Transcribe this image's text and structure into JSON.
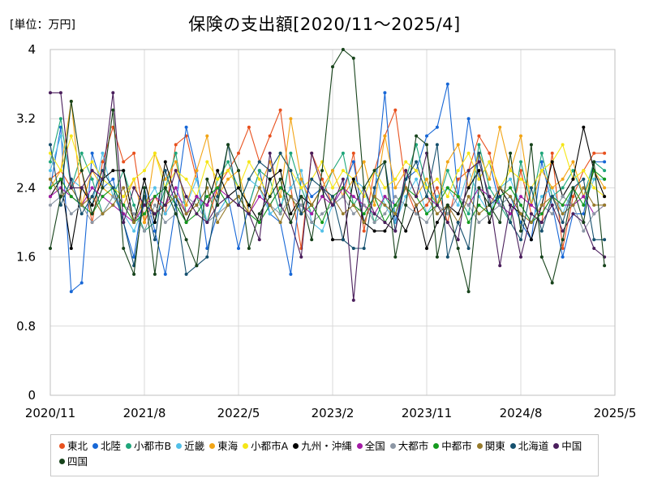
{
  "unit_label": "[単位：万円]",
  "chart_data": {
    "type": "line",
    "title": "保険の支出額[2020/11～2025/4]",
    "xlabel": "",
    "ylabel": "",
    "ylim": [
      0,
      4
    ],
    "yticks": [
      0,
      0.8,
      1.6,
      2.4,
      3.2,
      4
    ],
    "x_tick_labels": [
      "2020/11",
      "2021/8",
      "2022/5",
      "2023/2",
      "2023/11",
      "2024/8",
      "2025/5"
    ],
    "x_tick_positions": [
      0,
      9,
      18,
      27,
      36,
      45,
      54
    ],
    "x": [
      "2020/11",
      "2020/12",
      "2021/1",
      "2021/2",
      "2021/3",
      "2021/4",
      "2021/5",
      "2021/6",
      "2021/7",
      "2021/8",
      "2021/9",
      "2021/10",
      "2021/11",
      "2021/12",
      "2022/1",
      "2022/2",
      "2022/3",
      "2022/4",
      "2022/5",
      "2022/6",
      "2022/7",
      "2022/8",
      "2022/9",
      "2022/10",
      "2022/11",
      "2022/12",
      "2023/1",
      "2023/2",
      "2023/3",
      "2023/4",
      "2023/5",
      "2023/6",
      "2023/7",
      "2023/8",
      "2023/9",
      "2023/10",
      "2023/11",
      "2023/12",
      "2024/1",
      "2024/2",
      "2024/3",
      "2024/4",
      "2024/5",
      "2024/6",
      "2024/7",
      "2024/8",
      "2024/9",
      "2024/10",
      "2024/11",
      "2024/12",
      "2025/1",
      "2025/2",
      "2025/3",
      "2025/4"
    ],
    "grid": true,
    "legend_position": "bottom",
    "series": [
      {
        "name": "東北",
        "color": "#e8511e",
        "values": [
          2.5,
          2.6,
          2.4,
          2.6,
          2.0,
          2.7,
          3.1,
          2.7,
          2.8,
          2.0,
          2.3,
          2.1,
          2.9,
          3.0,
          2.5,
          2.0,
          2.4,
          2.6,
          2.8,
          3.1,
          2.7,
          3.0,
          3.3,
          2.4,
          1.7,
          2.8,
          2.5,
          2.2,
          2.3,
          2.8,
          1.9,
          2.6,
          3.0,
          3.3,
          2.4,
          2.1,
          2.2,
          2.4,
          2.0,
          2.5,
          2.6,
          3.0,
          2.8,
          2.3,
          2.0,
          2.6,
          2.1,
          2.0,
          2.8,
          1.7,
          2.3,
          2.6,
          2.8,
          2.8
        ]
      },
      {
        "name": "北陸",
        "color": "#1767d6",
        "values": [
          2.4,
          3.1,
          1.2,
          1.3,
          2.8,
          2.4,
          2.5,
          2.0,
          1.6,
          2.4,
          1.9,
          1.4,
          2.2,
          3.1,
          2.6,
          1.7,
          2.1,
          2.3,
          1.7,
          2.2,
          2.6,
          2.1,
          2.0,
          1.4,
          2.5,
          2.3,
          2.4,
          2.2,
          2.4,
          2.7,
          2.0,
          2.3,
          3.5,
          2.0,
          2.5,
          2.6,
          3.0,
          3.1,
          3.6,
          2.3,
          3.2,
          2.5,
          2.7,
          2.2,
          2.3,
          2.0,
          1.8,
          2.7,
          2.2,
          1.6,
          2.1,
          2.1,
          2.7,
          2.7
        ]
      },
      {
        "name": "小都市B",
        "color": "#1fa67a",
        "values": [
          2.7,
          3.2,
          2.4,
          2.8,
          2.5,
          2.1,
          2.3,
          2.6,
          2.2,
          1.9,
          2.0,
          2.4,
          2.8,
          2.1,
          2.3,
          2.0,
          2.5,
          2.7,
          2.4,
          2.2,
          2.6,
          2.5,
          2.1,
          2.8,
          2.4,
          2.1,
          2.3,
          2.6,
          2.8,
          2.2,
          2.4,
          2.0,
          2.3,
          2.1,
          2.5,
          2.9,
          2.4,
          2.2,
          2.6,
          2.3,
          2.1,
          2.9,
          2.4,
          2.2,
          2.0,
          2.7,
          2.2,
          2.8,
          2.3,
          2.4,
          2.6,
          2.3,
          2.7,
          2.6
        ]
      },
      {
        "name": "近畿",
        "color": "#52c0e8",
        "values": [
          2.6,
          3.0,
          2.5,
          2.4,
          2.2,
          2.8,
          2.3,
          2.1,
          1.9,
          2.2,
          2.4,
          2.1,
          2.3,
          2.2,
          2.5,
          2.0,
          2.1,
          2.3,
          2.2,
          2.5,
          2.4,
          2.1,
          2.2,
          2.4,
          2.6,
          2.0,
          1.9,
          2.2,
          2.3,
          2.5,
          2.4,
          2.6,
          2.2,
          2.0,
          2.3,
          2.5,
          2.1,
          2.3,
          2.4,
          2.2,
          2.6,
          2.3,
          2.1,
          2.4,
          2.5,
          2.2,
          2.0,
          2.3,
          2.4,
          2.1,
          2.4,
          2.2,
          2.5,
          2.5
        ]
      },
      {
        "name": "東海",
        "color": "#f2a516",
        "values": [
          2.4,
          2.6,
          3.4,
          2.2,
          2.6,
          2.4,
          2.3,
          2.2,
          2.5,
          2.0,
          2.8,
          2.5,
          2.7,
          2.2,
          2.6,
          3.0,
          2.3,
          2.5,
          2.6,
          2.1,
          2.4,
          2.7,
          2.3,
          3.2,
          2.5,
          2.2,
          2.4,
          2.6,
          2.3,
          2.5,
          2.7,
          2.2,
          3.0,
          2.4,
          2.6,
          2.3,
          2.5,
          2.2,
          2.7,
          2.9,
          2.4,
          2.8,
          2.5,
          3.1,
          2.6,
          3.0,
          2.2,
          2.6,
          2.4,
          2.5,
          2.7,
          2.3,
          2.6,
          2.4
        ]
      },
      {
        "name": "小都市A",
        "color": "#f5e617",
        "values": [
          2.8,
          2.6,
          3.0,
          2.6,
          2.7,
          2.5,
          2.4,
          2.3,
          2.5,
          2.6,
          2.8,
          2.4,
          2.6,
          2.5,
          2.3,
          2.7,
          2.5,
          2.6,
          2.4,
          2.7,
          2.5,
          2.3,
          2.8,
          2.6,
          2.4,
          2.5,
          2.7,
          2.4,
          2.6,
          2.5,
          2.3,
          2.6,
          2.4,
          2.5,
          2.7,
          2.6,
          2.4,
          2.5,
          2.3,
          2.6,
          2.8,
          2.5,
          2.7,
          2.4,
          2.6,
          2.5,
          2.4,
          2.6,
          2.7,
          2.9,
          2.5,
          2.6,
          2.4,
          2.3
        ]
      },
      {
        "name": "九州・沖縄",
        "color": "#000000",
        "values": [
          2.3,
          2.5,
          1.7,
          2.4,
          2.2,
          2.5,
          2.6,
          2.6,
          2.0,
          2.5,
          2.0,
          2.7,
          2.3,
          2.0,
          2.3,
          2.2,
          2.6,
          2.3,
          2.4,
          2.2,
          2.0,
          2.5,
          2.6,
          2.1,
          2.3,
          2.2,
          2.4,
          1.8,
          1.8,
          2.5,
          2.0,
          1.9,
          1.9,
          2.1,
          1.9,
          2.2,
          1.7,
          2.0,
          2.2,
          2.1,
          2.4,
          2.6,
          2.0,
          2.4,
          2.2,
          2.1,
          1.8,
          2.2,
          2.7,
          2.3,
          2.5,
          3.1,
          2.6,
          2.3
        ]
      },
      {
        "name": "全国",
        "color": "#a31ba5",
        "values": [
          2.3,
          2.4,
          2.3,
          2.2,
          2.4,
          2.3,
          2.2,
          2.1,
          2.0,
          2.2,
          2.3,
          2.2,
          2.4,
          2.1,
          2.3,
          2.2,
          2.4,
          2.3,
          2.2,
          2.1,
          2.3,
          2.2,
          2.4,
          2.3,
          2.2,
          2.1,
          2.3,
          2.2,
          2.4,
          2.3,
          2.2,
          2.1,
          2.3,
          2.2,
          2.4,
          2.2,
          2.3,
          2.2,
          2.1,
          2.3,
          2.2,
          2.4,
          2.3,
          2.2,
          2.1,
          2.3,
          2.2,
          2.1,
          2.3,
          2.2,
          2.2,
          2.3,
          2.1,
          2.2
        ]
      },
      {
        "name": "大都市",
        "color": "#8c97a5",
        "values": [
          2.2,
          2.3,
          2.1,
          2.2,
          2.0,
          2.1,
          2.3,
          2.2,
          2.1,
          1.9,
          2.2,
          2.0,
          2.1,
          2.3,
          2.2,
          2.0,
          2.1,
          2.2,
          2.3,
          2.1,
          2.0,
          2.2,
          2.1,
          2.3,
          2.2,
          2.0,
          2.1,
          2.2,
          2.3,
          2.1,
          2.2,
          2.0,
          2.1,
          2.3,
          2.2,
          2.1,
          2.0,
          2.2,
          2.1,
          2.3,
          2.2,
          2.0,
          2.1,
          2.2,
          2.3,
          2.1,
          2.0,
          2.2,
          2.1,
          2.3,
          2.2,
          1.9,
          2.1,
          2.2
        ]
      },
      {
        "name": "中都市",
        "color": "#149a1e",
        "values": [
          2.4,
          2.5,
          2.3,
          2.2,
          2.1,
          2.3,
          2.4,
          2.2,
          2.0,
          2.1,
          2.3,
          2.4,
          2.2,
          2.0,
          2.1,
          2.3,
          2.4,
          2.2,
          2.3,
          2.1,
          2.0,
          2.2,
          2.4,
          2.3,
          2.1,
          2.2,
          2.0,
          2.3,
          2.4,
          2.2,
          2.1,
          2.3,
          2.0,
          2.2,
          2.4,
          2.3,
          2.1,
          2.2,
          2.4,
          2.3,
          2.0,
          2.2,
          2.1,
          2.3,
          2.4,
          2.2,
          2.0,
          2.1,
          2.3,
          2.2,
          2.4,
          2.2,
          2.6,
          2.5
        ]
      },
      {
        "name": "関東",
        "color": "#967a2a",
        "values": [
          2.5,
          2.3,
          2.4,
          2.2,
          2.3,
          2.1,
          2.2,
          2.4,
          2.0,
          2.3,
          2.1,
          2.2,
          2.3,
          2.1,
          2.2,
          2.4,
          2.0,
          2.2,
          2.3,
          2.1,
          2.4,
          2.2,
          2.0,
          2.3,
          2.1,
          2.2,
          2.4,
          2.3,
          2.1,
          2.2,
          2.0,
          2.3,
          2.2,
          2.1,
          2.4,
          2.2,
          2.3,
          2.1,
          2.2,
          2.0,
          2.3,
          2.1,
          2.2,
          2.4,
          2.3,
          2.1,
          2.0,
          2.2,
          2.3,
          2.1,
          2.2,
          2.4,
          2.2,
          2.2
        ]
      },
      {
        "name": "北海道",
        "color": "#15506e",
        "values": [
          2.9,
          2.2,
          2.5,
          2.1,
          2.3,
          2.6,
          2.4,
          2.0,
          1.5,
          2.3,
          1.8,
          2.6,
          2.2,
          1.4,
          1.5,
          1.6,
          2.3,
          2.9,
          2.2,
          2.5,
          2.7,
          2.6,
          2.8,
          2.6,
          2.1,
          2.5,
          2.4,
          2.3,
          1.8,
          1.7,
          1.7,
          2.4,
          2.7,
          1.9,
          2.5,
          2.7,
          2.3,
          2.9,
          1.6,
          2.0,
          1.7,
          2.8,
          2.2,
          2.3,
          2.0,
          1.8,
          2.4,
          1.9,
          2.3,
          2.0,
          2.4,
          2.5,
          1.8,
          1.8
        ]
      },
      {
        "name": "中国",
        "color": "#4a1e5c",
        "values": [
          3.5,
          3.5,
          2.4,
          2.4,
          2.6,
          2.5,
          3.5,
          2.0,
          2.4,
          2.2,
          2.1,
          2.2,
          2.6,
          2.3,
          2.1,
          2.0,
          2.2,
          2.3,
          2.2,
          2.1,
          1.8,
          2.8,
          2.2,
          2.0,
          1.6,
          2.8,
          2.4,
          2.2,
          2.5,
          1.1,
          2.4,
          2.1,
          2.0,
          1.9,
          2.6,
          2.3,
          2.8,
          2.2,
          2.0,
          1.8,
          2.6,
          2.7,
          2.3,
          1.5,
          2.2,
          1.6,
          2.1,
          2.0,
          2.2,
          1.9,
          2.1,
          2.0,
          1.7,
          1.6
        ]
      },
      {
        "name": "四国",
        "color": "#17431b",
        "values": [
          1.7,
          2.3,
          3.4,
          2.6,
          2.1,
          2.4,
          3.3,
          1.7,
          1.4,
          2.4,
          1.4,
          2.4,
          2.1,
          1.8,
          1.5,
          2.5,
          2.2,
          2.9,
          2.6,
          1.7,
          2.1,
          2.3,
          2.5,
          2.0,
          2.3,
          1.8,
          2.6,
          3.8,
          4.0,
          3.9,
          2.4,
          2.6,
          2.7,
          1.6,
          2.2,
          3.0,
          2.9,
          1.6,
          2.2,
          1.7,
          1.2,
          2.4,
          2.2,
          2.0,
          2.8,
          1.9,
          2.9,
          1.6,
          1.3,
          1.8,
          2.4,
          2.0,
          2.7,
          1.5
        ]
      }
    ]
  }
}
